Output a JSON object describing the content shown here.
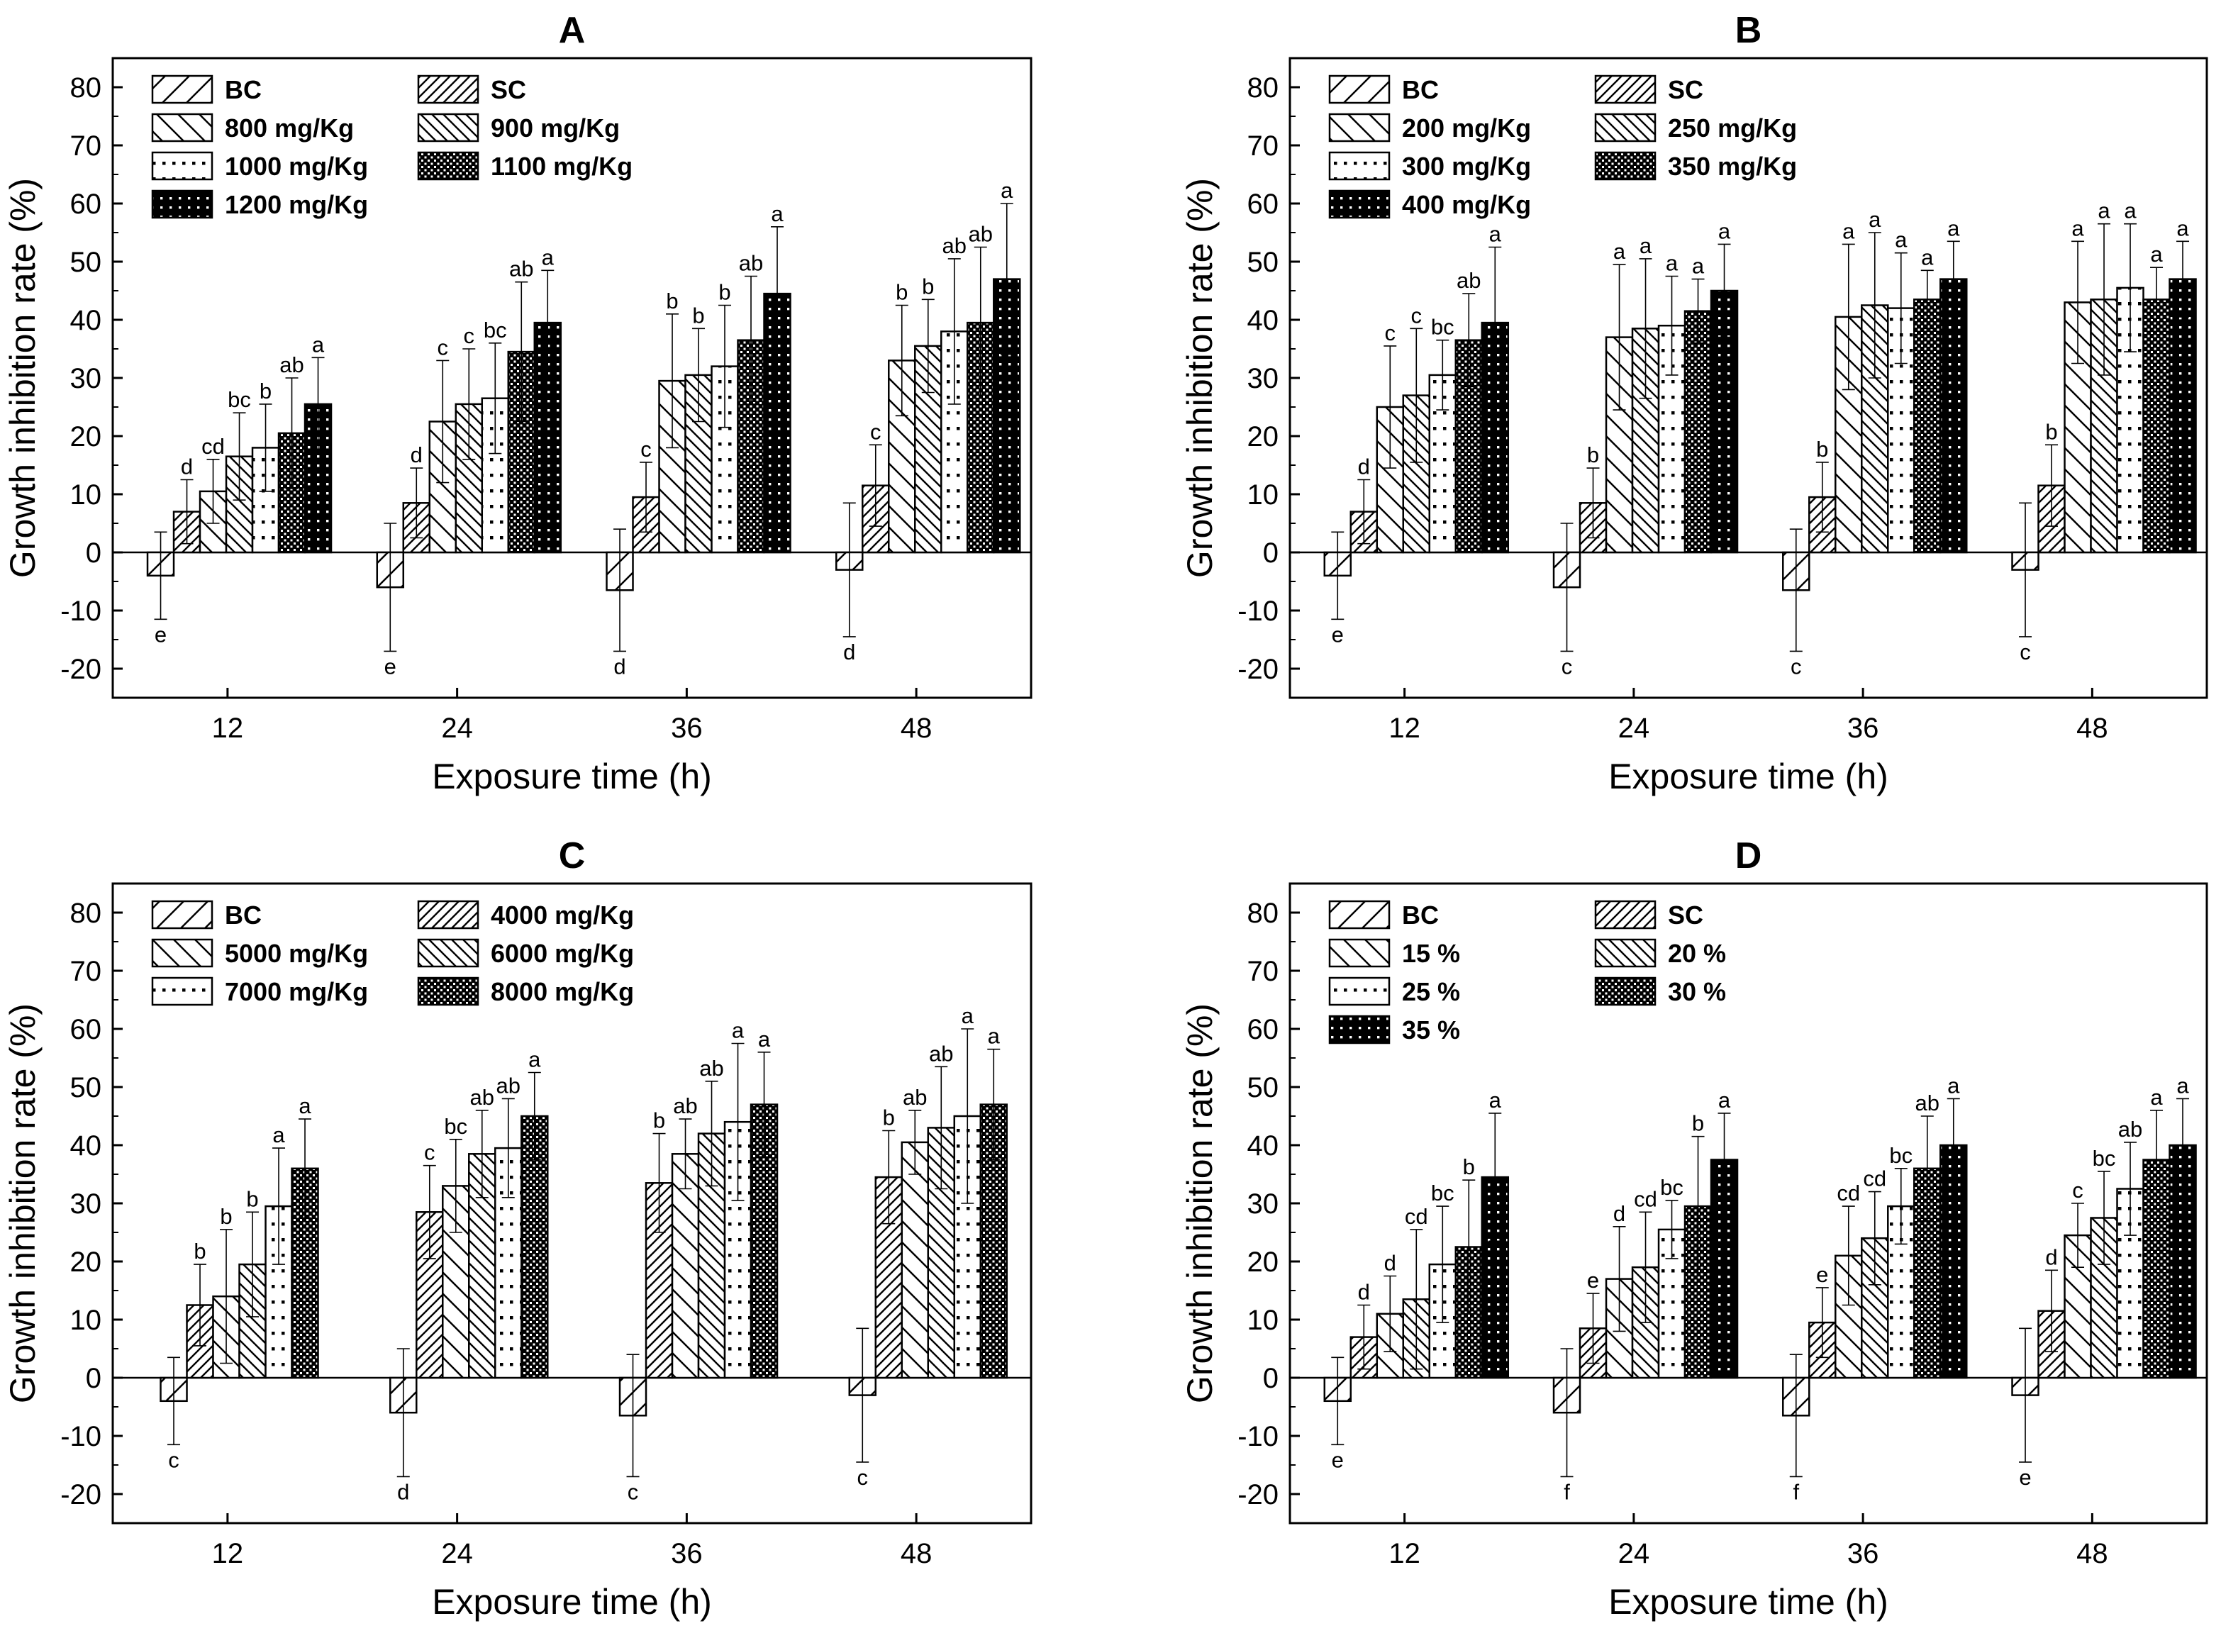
{
  "chart_data": [
    {
      "panel": "A",
      "type": "bar",
      "xlabel": "Exposure time (h)",
      "ylabel": "Growth inhibition rate (%)",
      "ylim": [
        -25,
        85
      ],
      "yticks": [
        -20,
        -10,
        0,
        10,
        20,
        30,
        40,
        50,
        60,
        70,
        80
      ],
      "categories": [
        "12",
        "24",
        "36",
        "48"
      ],
      "legend_position": "top-left",
      "series": [
        {
          "name": "BC",
          "pattern": "diag-light",
          "values": [
            -4,
            -6,
            -6.5,
            -3
          ],
          "errors": [
            7.5,
            11,
            10.5,
            11.5
          ],
          "sig": [
            "e",
            "e",
            "d",
            "d"
          ]
        },
        {
          "name": "SC",
          "pattern": "diag-dense",
          "values": [
            7,
            8.5,
            9.5,
            11.5
          ],
          "errors": [
            5.5,
            6,
            6,
            7
          ],
          "sig": [
            "d",
            "d",
            "c",
            "c"
          ]
        },
        {
          "name": "800 mg/Kg",
          "pattern": "back",
          "values": [
            10.5,
            22.5,
            29.5,
            33
          ],
          "errors": [
            5.5,
            10.5,
            11.5,
            9.5
          ],
          "sig": [
            "cd",
            "c",
            "b",
            "b"
          ]
        },
        {
          "name": "900 mg/Kg",
          "pattern": "back-dense",
          "values": [
            16.5,
            25.5,
            30.5,
            35.5
          ],
          "errors": [
            7.5,
            9.5,
            8,
            8
          ],
          "sig": [
            "bc",
            "c",
            "b",
            "b"
          ]
        },
        {
          "name": "1000 mg/Kg",
          "pattern": "dots",
          "values": [
            18,
            26.5,
            32,
            38
          ],
          "errors": [
            7.5,
            9.5,
            10.5,
            12.5
          ],
          "sig": [
            "b",
            "bc",
            "b",
            "ab"
          ]
        },
        {
          "name": "1100 mg/Kg",
          "pattern": "checker",
          "values": [
            20.5,
            34.5,
            36.5,
            39.5
          ],
          "errors": [
            9.5,
            12,
            11,
            13
          ],
          "sig": [
            "ab",
            "ab",
            "ab",
            "ab"
          ]
        },
        {
          "name": "1200 mg/Kg",
          "pattern": "dense-black",
          "values": [
            25.5,
            39.5,
            44.5,
            47
          ],
          "errors": [
            8,
            9,
            11.5,
            13
          ],
          "sig": [
            "a",
            "a",
            "a",
            "a"
          ]
        }
      ]
    },
    {
      "panel": "B",
      "type": "bar",
      "xlabel": "Exposure time (h)",
      "ylabel": "Growth inhibition rate (%)",
      "ylim": [
        -25,
        85
      ],
      "yticks": [
        -20,
        -10,
        0,
        10,
        20,
        30,
        40,
        50,
        60,
        70,
        80
      ],
      "categories": [
        "12",
        "24",
        "36",
        "48"
      ],
      "legend_position": "top-left",
      "series": [
        {
          "name": "BC",
          "pattern": "diag-light",
          "values": [
            -4,
            -6,
            -6.5,
            -3
          ],
          "errors": [
            7.5,
            11,
            10.5,
            11.5
          ],
          "sig": [
            "e",
            "c",
            "c",
            "c"
          ]
        },
        {
          "name": "SC",
          "pattern": "diag-dense",
          "values": [
            7,
            8.5,
            9.5,
            11.5
          ],
          "errors": [
            5.5,
            6,
            6,
            7
          ],
          "sig": [
            "d",
            "b",
            "b",
            "b"
          ]
        },
        {
          "name": "200 mg/Kg",
          "pattern": "back",
          "values": [
            25,
            37,
            40.5,
            43
          ],
          "errors": [
            10.5,
            12.5,
            12.5,
            10.5
          ],
          "sig": [
            "c",
            "a",
            "a",
            "a"
          ]
        },
        {
          "name": "250 mg/Kg",
          "pattern": "back-dense",
          "values": [
            27,
            38.5,
            42.5,
            43.5
          ],
          "errors": [
            11.5,
            12,
            12.5,
            13
          ],
          "sig": [
            "c",
            "a",
            "a",
            "a"
          ]
        },
        {
          "name": "300 mg/Kg",
          "pattern": "dots",
          "values": [
            30.5,
            39,
            42,
            45.5
          ],
          "errors": [
            6,
            8.5,
            9.5,
            11
          ],
          "sig": [
            "bc",
            "a",
            "a",
            "a"
          ]
        },
        {
          "name": "350 mg/Kg",
          "pattern": "checker",
          "values": [
            36.5,
            41.5,
            43.5,
            43.5
          ],
          "errors": [
            8,
            5.5,
            5,
            5.5
          ],
          "sig": [
            "ab",
            "a",
            "a",
            "a"
          ]
        },
        {
          "name": "400 mg/Kg",
          "pattern": "dense-black",
          "values": [
            39.5,
            45,
            47,
            47
          ],
          "errors": [
            13,
            8,
            6.5,
            6.5
          ],
          "sig": [
            "a",
            "a",
            "a",
            "a"
          ]
        }
      ]
    },
    {
      "panel": "C",
      "type": "bar",
      "xlabel": "Exposure time (h)",
      "ylabel": "Growth inhibition rate (%)",
      "ylim": [
        -25,
        85
      ],
      "yticks": [
        -20,
        -10,
        0,
        10,
        20,
        30,
        40,
        50,
        60,
        70,
        80
      ],
      "categories": [
        "12",
        "24",
        "36",
        "48"
      ],
      "legend_position": "top-left",
      "series": [
        {
          "name": "BC",
          "pattern": "diag-light",
          "values": [
            -4,
            -6,
            -6.5,
            -3
          ],
          "errors": [
            7.5,
            11,
            10.5,
            11.5
          ],
          "sig": [
            "c",
            "d",
            "c",
            "c"
          ]
        },
        {
          "name": "4000 mg/Kg",
          "pattern": "diag-dense",
          "values": [
            12.5,
            28.5,
            33.5,
            34.5
          ],
          "errors": [
            7,
            8,
            8.5,
            8
          ],
          "sig": [
            "b",
            "c",
            "b",
            "b"
          ]
        },
        {
          "name": "5000 mg/Kg",
          "pattern": "back",
          "values": [
            14,
            33,
            38.5,
            40.5
          ],
          "errors": [
            11.5,
            8,
            6,
            5.5
          ],
          "sig": [
            "b",
            "bc",
            "ab",
            "ab"
          ]
        },
        {
          "name": "6000 mg/Kg",
          "pattern": "back-dense",
          "values": [
            19.5,
            38.5,
            42,
            43
          ],
          "errors": [
            9,
            7.5,
            9,
            10.5
          ],
          "sig": [
            "b",
            "ab",
            "ab",
            "ab"
          ]
        },
        {
          "name": "7000 mg/Kg",
          "pattern": "dots",
          "values": [
            29.5,
            39.5,
            44,
            45
          ],
          "errors": [
            10,
            8.5,
            13.5,
            15
          ],
          "sig": [
            "a",
            "ab",
            "a",
            "a"
          ]
        },
        {
          "name": "8000 mg/Kg",
          "pattern": "checker",
          "values": [
            36,
            45,
            47,
            47
          ],
          "errors": [
            8.5,
            7.5,
            9,
            9.5
          ],
          "sig": [
            "a",
            "a",
            "a",
            "a"
          ]
        }
      ]
    },
    {
      "panel": "D",
      "type": "bar",
      "xlabel": "Exposure time (h)",
      "ylabel": "Growth inhibition rate (%)",
      "ylim": [
        -25,
        85
      ],
      "yticks": [
        -20,
        -10,
        0,
        10,
        20,
        30,
        40,
        50,
        60,
        70,
        80
      ],
      "categories": [
        "12",
        "24",
        "36",
        "48"
      ],
      "legend_position": "top-left",
      "series": [
        {
          "name": "BC",
          "pattern": "diag-light",
          "values": [
            -4,
            -6,
            -6.5,
            -3
          ],
          "errors": [
            7.5,
            11,
            10.5,
            11.5
          ],
          "sig": [
            "e",
            "f",
            "f",
            "e"
          ]
        },
        {
          "name": "SC",
          "pattern": "diag-dense",
          "values": [
            7,
            8.5,
            9.5,
            11.5
          ],
          "errors": [
            5.5,
            6,
            6,
            7
          ],
          "sig": [
            "d",
            "e",
            "e",
            "d"
          ]
        },
        {
          "name": "15 %",
          "pattern": "back",
          "values": [
            11,
            17,
            21,
            24.5
          ],
          "errors": [
            6.5,
            9,
            8.5,
            5.5
          ],
          "sig": [
            "d",
            "d",
            "cd",
            "c"
          ]
        },
        {
          "name": "20 %",
          "pattern": "back-dense",
          "values": [
            13.5,
            19,
            24,
            27.5
          ],
          "errors": [
            12,
            9.5,
            8,
            8
          ],
          "sig": [
            "cd",
            "cd",
            "cd",
            "bc"
          ]
        },
        {
          "name": "25 %",
          "pattern": "dots",
          "values": [
            19.5,
            25.5,
            29.5,
            32.5
          ],
          "errors": [
            10,
            5,
            6.5,
            8
          ],
          "sig": [
            "bc",
            "bc",
            "bc",
            "ab"
          ]
        },
        {
          "name": "30 %",
          "pattern": "checker",
          "values": [
            22.5,
            29.5,
            36,
            37.5
          ],
          "errors": [
            11.5,
            12,
            9,
            8.5
          ],
          "sig": [
            "b",
            "b",
            "ab",
            "a"
          ]
        },
        {
          "name": "35 %",
          "pattern": "dense-black",
          "values": [
            34.5,
            37.5,
            40,
            40
          ],
          "errors": [
            11,
            8,
            8,
            8
          ],
          "sig": [
            "a",
            "a",
            "a",
            "a"
          ]
        }
      ]
    }
  ]
}
